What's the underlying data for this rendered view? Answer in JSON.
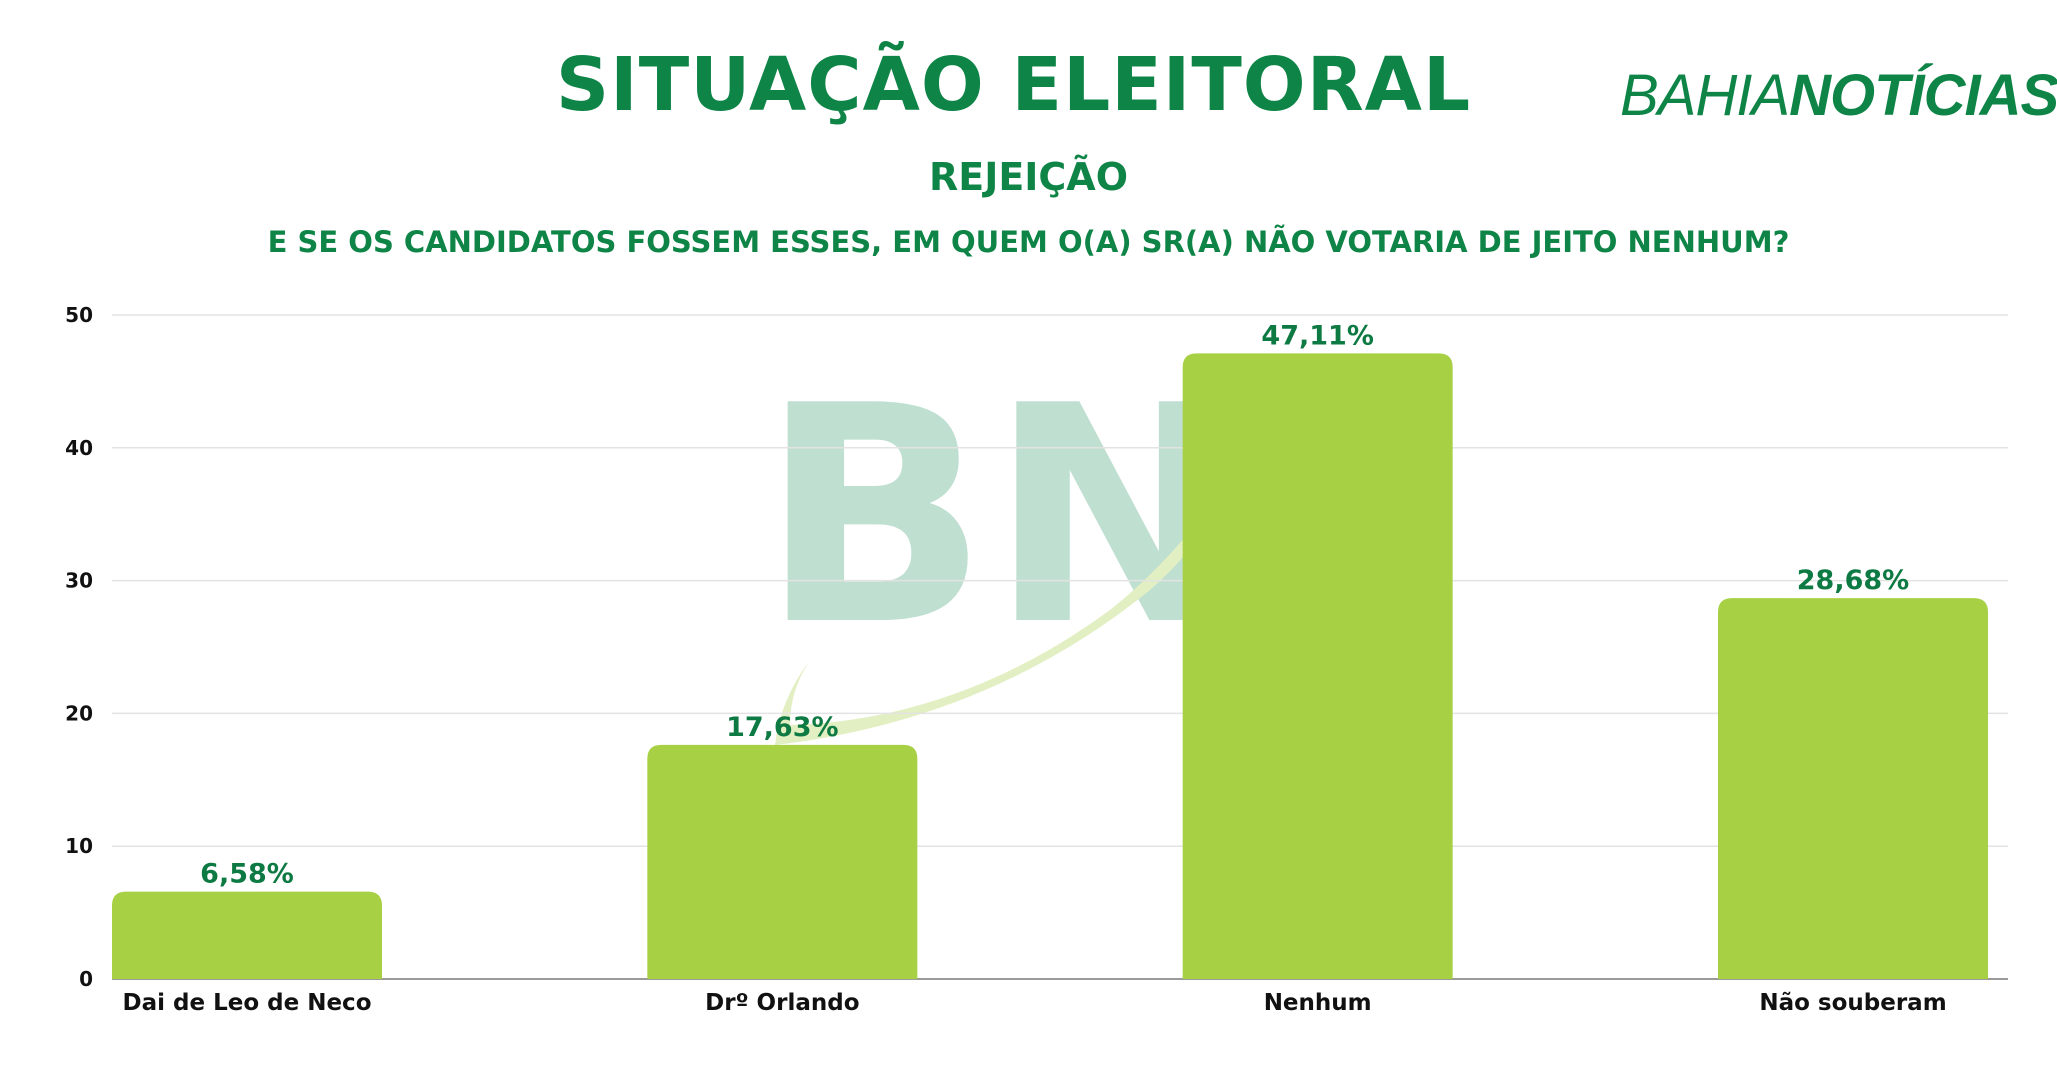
{
  "header": {
    "title": "SITUAÇÃO ELEITORAL",
    "subtitle": "REJEIÇÃO",
    "question": "E SE OS CANDIDATOS FOSSEM ESSES, EM QUEM O(A) SR(A) NÃO VOTARIA DE JEITO NENHUM?"
  },
  "brand": {
    "part1": "BAHIA",
    "part2": "NOTÍCIAS",
    "watermark": "BN"
  },
  "colors": {
    "primary": "#0e8447",
    "bar": "#a8d044",
    "watermark": "#bfdfd0",
    "swoosh": "#e2efc2",
    "grid": "#e3e3e3"
  },
  "chart_data": {
    "type": "bar",
    "categories": [
      "Dai de Leo de Neco",
      "Drº Orlando",
      "Nenhum",
      "Não souberam"
    ],
    "values": [
      6.58,
      17.63,
      47.11,
      28.68
    ],
    "value_labels": [
      "6,58%",
      "17,63%",
      "47,11%",
      "28,68%"
    ],
    "ylim": [
      0,
      50
    ],
    "yticks": [
      0,
      10,
      20,
      30,
      40,
      50
    ],
    "grid": true,
    "legend": "none"
  }
}
